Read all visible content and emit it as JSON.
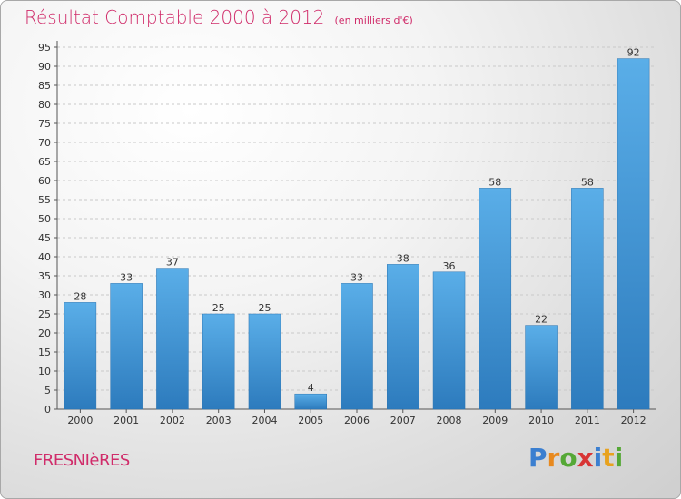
{
  "title": "Résultat Comptable 2000 à 2012",
  "subtitle": "(en milliers d'€)",
  "place": "FRESNIèRES",
  "brand": {
    "letters": [
      {
        "ch": "P",
        "color": "#3b7fd0"
      },
      {
        "ch": "r",
        "color": "#e8891e"
      },
      {
        "ch": "o",
        "color": "#55a836"
      },
      {
        "ch": "x",
        "color": "#d83535"
      },
      {
        "ch": "i",
        "color": "#3b7fd0"
      },
      {
        "ch": "t",
        "color": "#e8a21e"
      },
      {
        "ch": "i",
        "color": "#55a836"
      }
    ]
  },
  "colors": {
    "bar_top": "#5aaee8",
    "bar_bottom": "#2d7bbd",
    "title": "#d02c6a"
  },
  "chart_data": {
    "type": "bar",
    "title": "Résultat Comptable 2000 à 2012",
    "subtitle": "(en milliers d'€)",
    "xlabel": "",
    "ylabel": "",
    "categories": [
      "2000",
      "2001",
      "2002",
      "2003",
      "2004",
      "2005",
      "2006",
      "2007",
      "2008",
      "2009",
      "2010",
      "2011",
      "2012"
    ],
    "values": [
      28,
      33,
      37,
      25,
      25,
      4,
      33,
      38,
      36,
      58,
      22,
      58,
      92
    ],
    "ylim": [
      0,
      95
    ],
    "yticks": [
      0,
      5,
      10,
      15,
      20,
      25,
      30,
      35,
      40,
      45,
      50,
      55,
      60,
      65,
      70,
      75,
      80,
      85,
      90,
      95
    ],
    "grid": "horizontal"
  }
}
